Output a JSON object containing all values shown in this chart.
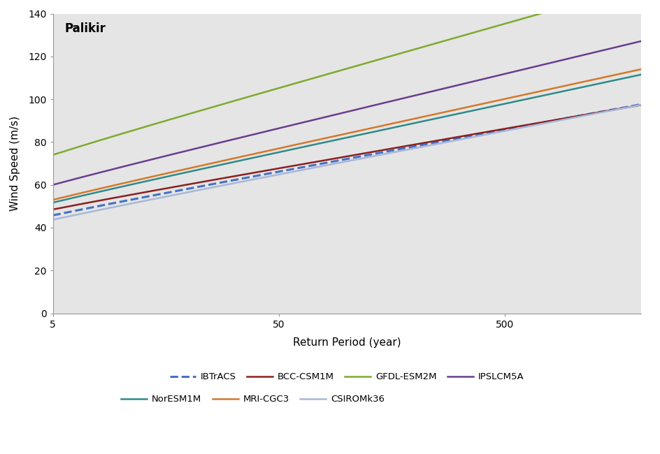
{
  "title": "Palikir",
  "xlabel": "Return Period (year)",
  "ylabel": "Wind Speed (m/s)",
  "ylim": [
    0,
    140
  ],
  "yticks": [
    0,
    20,
    40,
    60,
    80,
    100,
    120,
    140
  ],
  "xlim_log": [
    5,
    2000
  ],
  "background_color": "#e5e5e5",
  "series": [
    {
      "name": "IBTrACS",
      "color": "#4472c4",
      "linestyle": "--",
      "linewidth": 2.2,
      "u": 33.0,
      "alpha": 8.5
    },
    {
      "name": "BCC-CSM1M",
      "color": "#8b2020",
      "linestyle": "-",
      "linewidth": 1.8,
      "u": 36.5,
      "alpha": 8.0
    },
    {
      "name": "GFDL-ESM2M",
      "color": "#7faa2e",
      "linestyle": "-",
      "linewidth": 1.8,
      "u": 54.5,
      "alpha": 13.0
    },
    {
      "name": "IPSLCM5A",
      "color": "#6a3d8f",
      "linestyle": "-",
      "linewidth": 1.8,
      "u": 43.5,
      "alpha": 11.0
    },
    {
      "name": "NorESM1M",
      "color": "#2e8b8b",
      "linestyle": "-",
      "linewidth": 1.8,
      "u": 37.0,
      "alpha": 9.8
    },
    {
      "name": "MRI-CGC3",
      "color": "#d4782a",
      "linestyle": "-",
      "linewidth": 1.8,
      "u": 38.0,
      "alpha": 10.0
    },
    {
      "name": "CSIROMk36",
      "color": "#a8b8d8",
      "linestyle": "-",
      "linewidth": 1.8,
      "u": 30.5,
      "alpha": 8.8
    }
  ]
}
